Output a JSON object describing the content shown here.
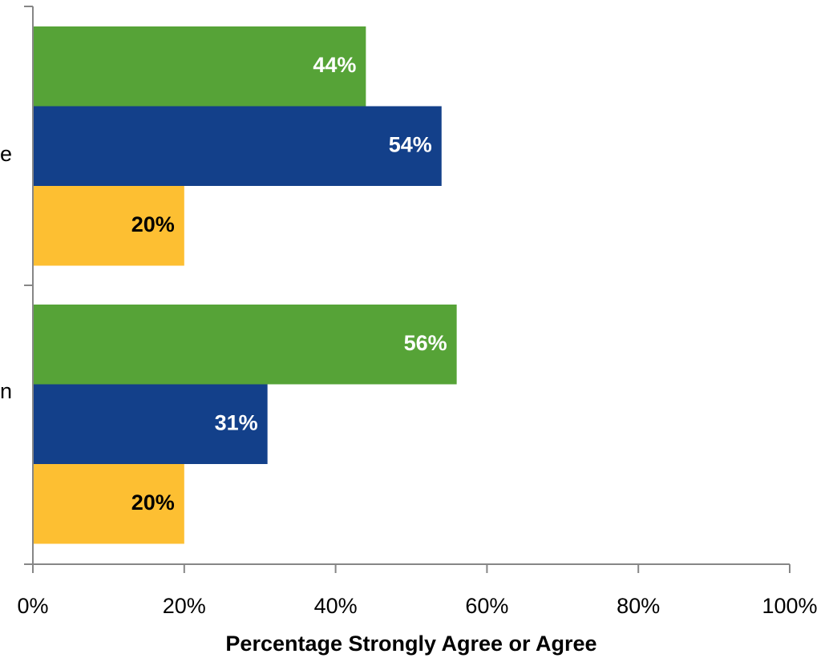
{
  "chart_data": {
    "type": "bar",
    "orientation": "horizontal",
    "categories": [
      "e",
      "n"
    ],
    "series": [
      {
        "values": [
          44,
          56
        ],
        "color": "#56a337",
        "label_color": "#ffffff"
      },
      {
        "values": [
          54,
          31
        ],
        "color": "#13408a",
        "label_color": "#ffffff"
      },
      {
        "values": [
          20,
          20
        ],
        "color": "#fdbf32",
        "label_color": "#000000"
      }
    ],
    "data_labels": [
      [
        "44%",
        "56%"
      ],
      [
        "54%",
        "31%"
      ],
      [
        "20%",
        "20%"
      ]
    ],
    "xlabel": "Percentage Strongly Agree or Agree",
    "xlim": [
      0,
      100
    ],
    "x_ticks": [
      "0%",
      "20%",
      "40%",
      "60%",
      "80%",
      "100%"
    ],
    "grid": false,
    "legend": "none"
  }
}
